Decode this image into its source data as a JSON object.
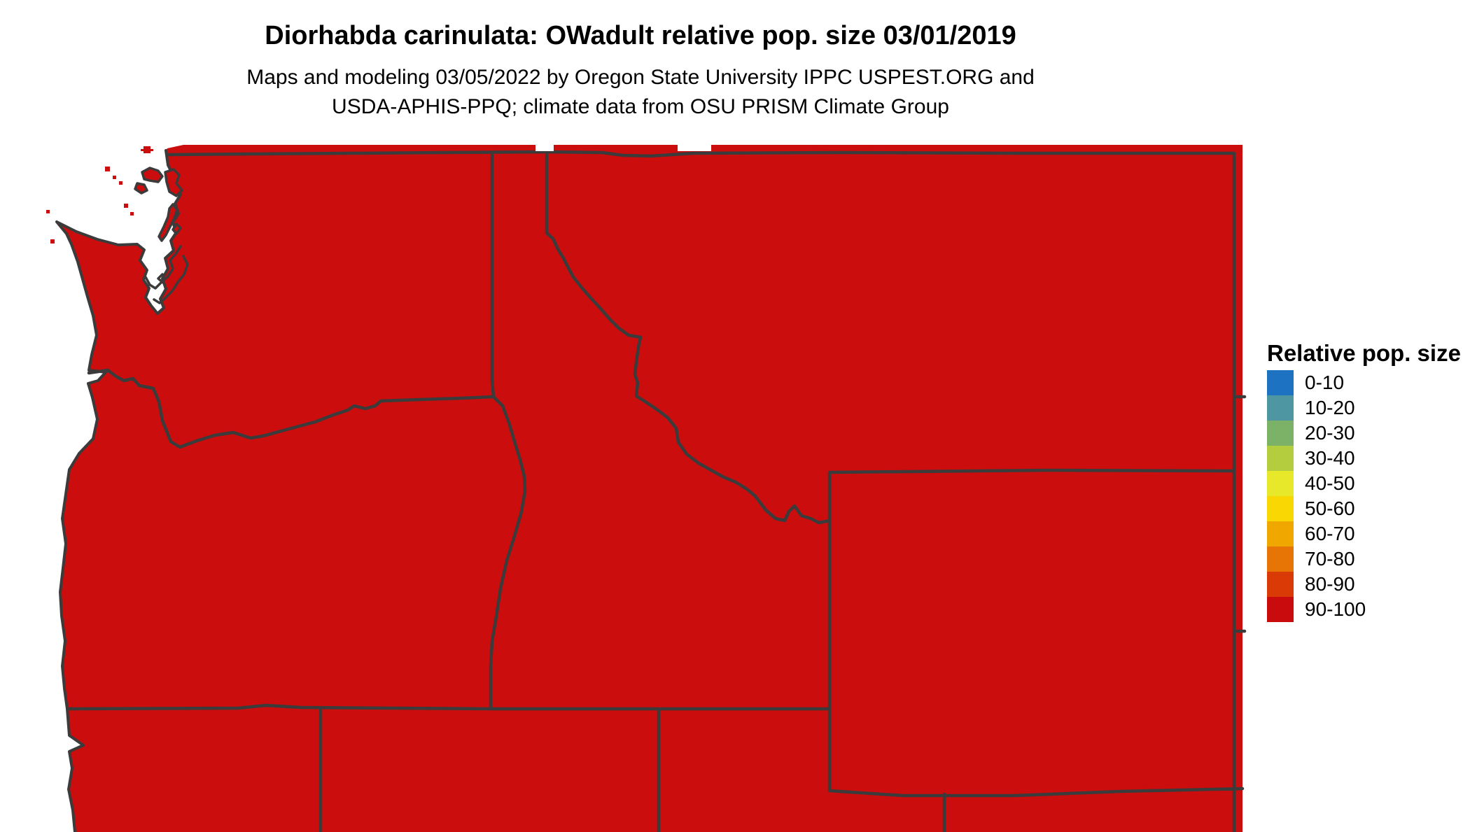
{
  "header": {
    "title": "Diorhabda carinulata: OWadult relative pop. size 03/01/2019",
    "subtitle_line1": "Maps and modeling 03/05/2022 by Oregon State University IPPC USPEST.ORG and",
    "subtitle_line2": "USDA-APHIS-PPQ; climate data from OSU PRISM Climate Group"
  },
  "legend": {
    "title": "Relative pop. size",
    "bins": [
      {
        "label": "0-10",
        "color": "#1d72c1"
      },
      {
        "label": "10-20",
        "color": "#4d96a2"
      },
      {
        "label": "20-30",
        "color": "#7cb267"
      },
      {
        "label": "30-40",
        "color": "#b4cd3f"
      },
      {
        "label": "40-50",
        "color": "#e6e829"
      },
      {
        "label": "50-60",
        "color": "#f9d703"
      },
      {
        "label": "60-70",
        "color": "#f0a800"
      },
      {
        "label": "70-80",
        "color": "#e67505"
      },
      {
        "label": "80-90",
        "color": "#da3a05"
      },
      {
        "label": "90-100",
        "color": "#c90b0e"
      }
    ]
  },
  "map": {
    "fill_color": "#cb0d0d",
    "border_color": "#3b3b3b",
    "water_color": "#ffffff",
    "dominant_class": "90-100"
  }
}
